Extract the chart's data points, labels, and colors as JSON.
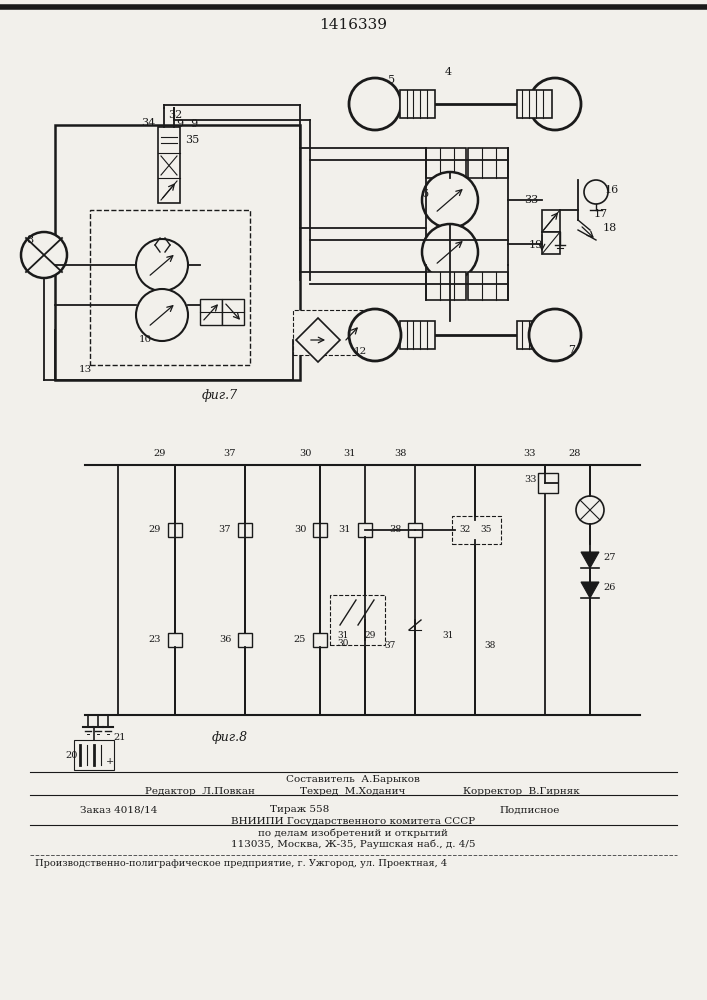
{
  "title": "1416339",
  "bg_color": "#f2f0eb",
  "line_color": "#1a1a1a",
  "fig7_label": "фиг.7",
  "fig8_label": "фиг.8",
  "footer": {
    "comp": "Составитель  А.Барыков",
    "editor": "Редактор  Л.Повкан",
    "tech": "Техред  М.Ходанич",
    "corrector": "Корректор  В.Гирняк",
    "order": "Заказ 4018/14",
    "tirazh": "Тираж 558",
    "podp": "Подписное",
    "vniip1": "ВНИИПИ Государственного комитета СССР",
    "vniip2": "по делам изобретений и открытий",
    "addr": "113035, Москва, Ж-35, Раушская наб., д. 4/5",
    "print": "Производственно-полиграфическое предприятие, г. Ужгород, ул. Проектная, 4"
  }
}
